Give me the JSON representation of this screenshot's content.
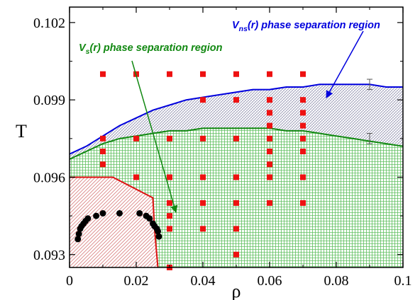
{
  "chart_data": {
    "type": "scatter",
    "xlabel": "ρ",
    "ylabel": "T",
    "xlim": [
      0,
      0.1
    ],
    "ylim": [
      0.0925,
      0.1026
    ],
    "x_ticks": [
      0,
      0.02,
      0.04,
      0.06,
      0.08,
      0.1
    ],
    "x_tick_labels": [
      "0",
      "0.02",
      "0.04",
      "0.06",
      "0.08",
      "0.1"
    ],
    "y_ticks": [
      0.093,
      0.096,
      0.099,
      0.102
    ],
    "y_tick_labels": [
      "0.093",
      "0.096",
      "0.099",
      "0.102"
    ],
    "colors": {
      "vns_curve": "#0000dd",
      "vs_curve": "#118811",
      "solid_boundary": "#dd1111",
      "square_markers": "#ee1111",
      "circle_markers": "#000000",
      "vs_fill": "#9fdd9f",
      "vns_fill": "#c9c9d6",
      "solid_fill": "#e6a0a0"
    },
    "annotations": {
      "vns": {
        "main": "V",
        "sub": "ns",
        "tail": "(r) phase separation region"
      },
      "vs": {
        "main": "V",
        "sub": "s",
        "tail": "(r) phase separation region"
      }
    },
    "vns_boundary": {
      "x": [
        0,
        0.005,
        0.01,
        0.015,
        0.02,
        0.025,
        0.03,
        0.035,
        0.04,
        0.045,
        0.05,
        0.055,
        0.06,
        0.065,
        0.07,
        0.075,
        0.08,
        0.085,
        0.09,
        0.095,
        0.1
      ],
      "y": [
        0.0969,
        0.0972,
        0.0976,
        0.098,
        0.0983,
        0.0986,
        0.0988,
        0.099,
        0.0991,
        0.0992,
        0.0993,
        0.0994,
        0.0994,
        0.0995,
        0.0995,
        0.0996,
        0.0996,
        0.0996,
        0.0996,
        0.0995,
        0.0995
      ]
    },
    "vs_boundary": {
      "x": [
        0,
        0.005,
        0.01,
        0.015,
        0.02,
        0.025,
        0.03,
        0.035,
        0.04,
        0.045,
        0.05,
        0.055,
        0.06,
        0.065,
        0.07,
        0.075,
        0.08,
        0.085,
        0.09,
        0.095,
        0.1
      ],
      "y": [
        0.0967,
        0.097,
        0.0973,
        0.0975,
        0.0976,
        0.0977,
        0.0978,
        0.0978,
        0.0979,
        0.0979,
        0.0979,
        0.0979,
        0.0979,
        0.0978,
        0.0978,
        0.0977,
        0.0976,
        0.0975,
        0.0974,
        0.0973,
        0.0972
      ]
    },
    "solid_boundary": {
      "x": [
        0,
        0.01,
        0.013,
        0.025,
        0.0255,
        0.0265
      ],
      "y": [
        0.096,
        0.096,
        0.096,
        0.0952,
        0.094,
        0.0925
      ]
    },
    "error_bars": [
      {
        "x": 0.09,
        "y": 0.0996,
        "err": 0.0002
      },
      {
        "x": 0.09,
        "y": 0.0975,
        "err": 0.0002
      }
    ],
    "square_markers": [
      {
        "x": 0.01,
        "y": [
          0.1,
          0.0975,
          0.097,
          0.0965
        ]
      },
      {
        "x": 0.02,
        "y": [
          0.1,
          0.0975,
          0.096
        ]
      },
      {
        "x": 0.03,
        "y": [
          0.1,
          0.0975,
          0.096,
          0.095,
          0.0945,
          0.094,
          0.0925
        ]
      },
      {
        "x": 0.04,
        "y": [
          0.1,
          0.099,
          0.0975,
          0.096,
          0.095,
          0.094
        ]
      },
      {
        "x": 0.05,
        "y": [
          0.1,
          0.099,
          0.0975,
          0.096,
          0.095,
          0.094,
          0.093
        ]
      },
      {
        "x": 0.06,
        "y": [
          0.1,
          0.099,
          0.0985,
          0.098,
          0.0975,
          0.097,
          0.0965,
          0.096,
          0.095
        ]
      },
      {
        "x": 0.07,
        "y": [
          0.1,
          0.099,
          0.0985,
          0.098,
          0.0975,
          0.097,
          0.096,
          0.095
        ]
      }
    ],
    "circle_markers": {
      "x": [
        0.0025,
        0.0028,
        0.0032,
        0.0036,
        0.0042,
        0.0048,
        0.0055,
        0.008,
        0.01,
        0.015,
        0.021,
        0.023,
        0.024,
        0.025,
        0.0255,
        0.0262,
        0.0265,
        0.0268
      ],
      "y": [
        0.0936,
        0.0938,
        0.094,
        0.0941,
        0.0942,
        0.0943,
        0.0944,
        0.0945,
        0.0946,
        0.0946,
        0.0946,
        0.0945,
        0.0944,
        0.0942,
        0.0941,
        0.094,
        0.0939,
        0.0937
      ]
    }
  }
}
